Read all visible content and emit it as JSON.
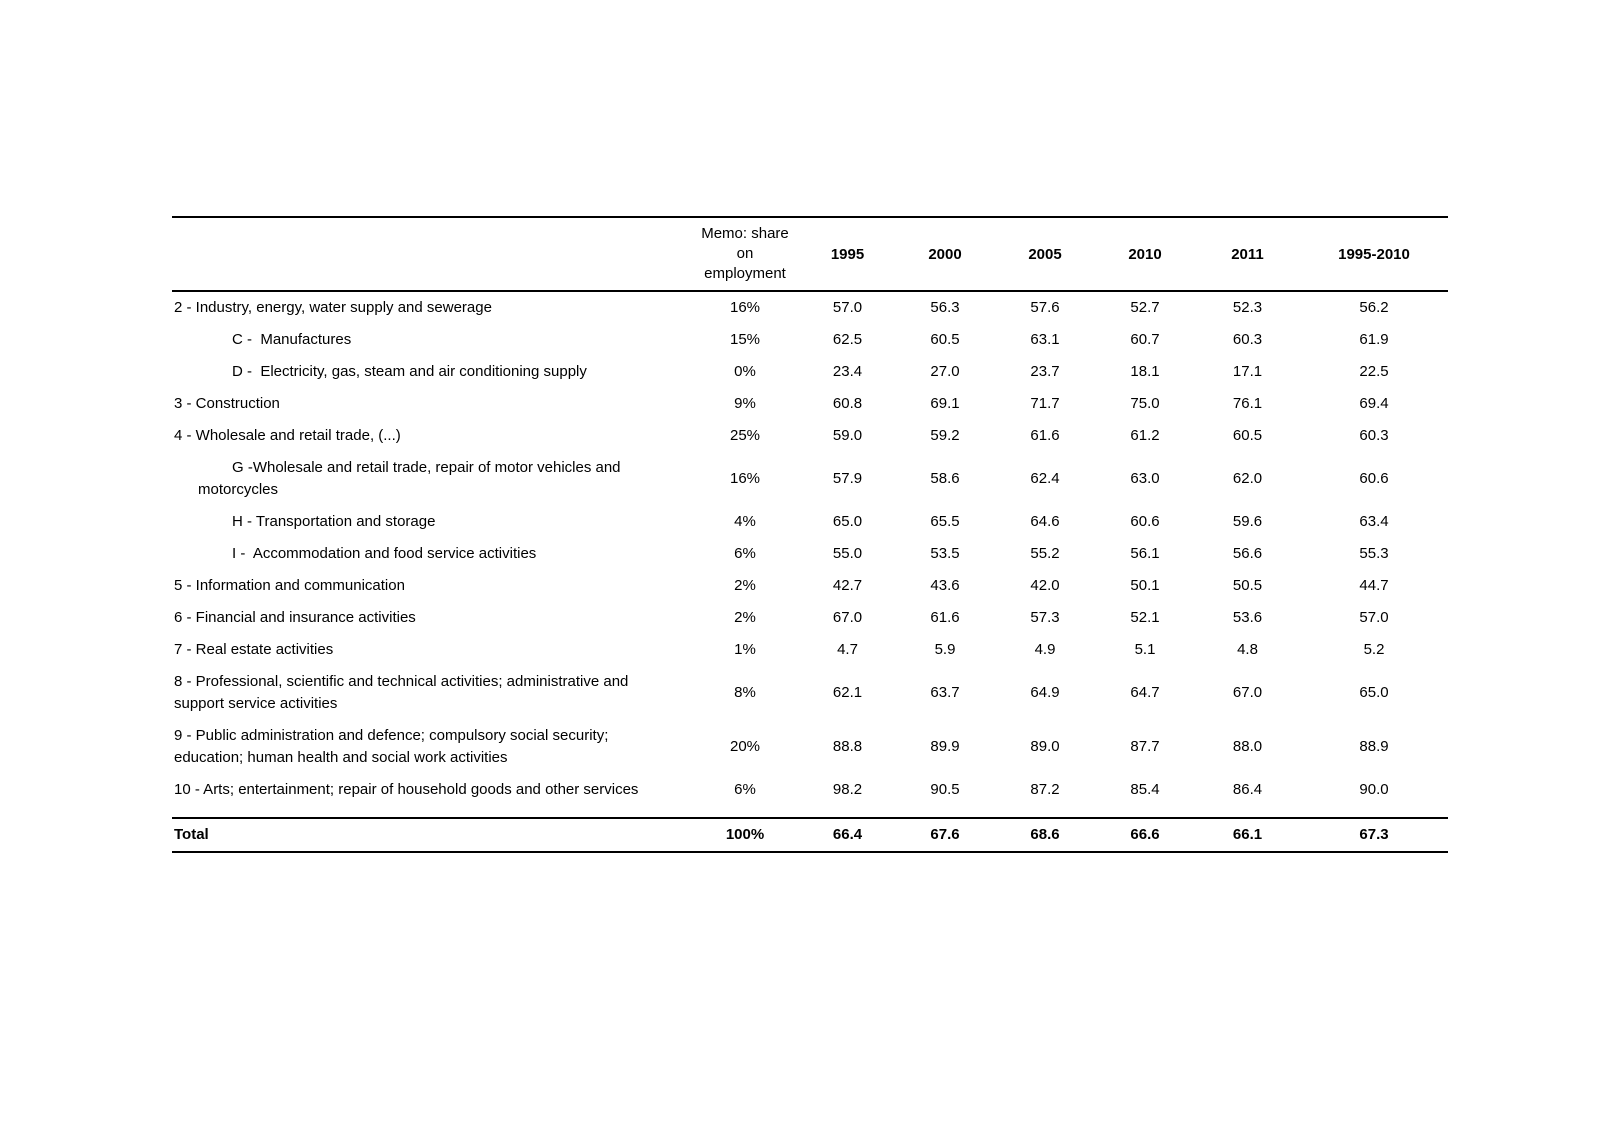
{
  "table": {
    "header": {
      "memo": "Memo: share on employment",
      "years": [
        "1995",
        "2000",
        "2005",
        "2010",
        "2011",
        "1995-2010"
      ]
    },
    "rows": [
      {
        "label": "2 - Industry, energy, water supply and sewerage",
        "level": 0,
        "memo": "16%",
        "values": [
          "57.0",
          "56.3",
          "57.6",
          "52.7",
          "52.3",
          "56.2"
        ]
      },
      {
        "label": "C -  Manufactures",
        "level": 1,
        "memo": "15%",
        "values": [
          "62.5",
          "60.5",
          "63.1",
          "60.7",
          "60.3",
          "61.9"
        ]
      },
      {
        "label": "D -  Electricity, gas, steam and air conditioning supply",
        "level": 1,
        "memo": "0%",
        "values": [
          "23.4",
          "27.0",
          "23.7",
          "18.1",
          "17.1",
          "22.5"
        ]
      },
      {
        "label": "3 - Construction",
        "level": 0,
        "memo": "9%",
        "values": [
          "60.8",
          "69.1",
          "71.7",
          "75.0",
          "76.1",
          "69.4"
        ]
      },
      {
        "label": "4 - Wholesale and retail trade, (...)",
        "level": 0,
        "memo": "25%",
        "values": [
          "59.0",
          "59.2",
          "61.6",
          "61.2",
          "60.5",
          "60.3"
        ]
      },
      {
        "label": "G -Wholesale and retail trade, repair of motor vehicles and motorcycles",
        "level": 1,
        "memo": "16%",
        "values": [
          "57.9",
          "58.6",
          "62.4",
          "63.0",
          "62.0",
          "60.6"
        ]
      },
      {
        "label": "H - Transportation and storage",
        "level": 1,
        "memo": "4%",
        "values": [
          "65.0",
          "65.5",
          "64.6",
          "60.6",
          "59.6",
          "63.4"
        ]
      },
      {
        "label": "I -  Accommodation and food service activities",
        "level": 1,
        "memo": "6%",
        "values": [
          "55.0",
          "53.5",
          "55.2",
          "56.1",
          "56.6",
          "55.3"
        ]
      },
      {
        "label": "5 - Information and communication",
        "level": 0,
        "memo": "2%",
        "values": [
          "42.7",
          "43.6",
          "42.0",
          "50.1",
          "50.5",
          "44.7"
        ]
      },
      {
        "label": "6 - Financial and insurance activities",
        "level": 0,
        "memo": "2%",
        "values": [
          "67.0",
          "61.6",
          "57.3",
          "52.1",
          "53.6",
          "57.0"
        ]
      },
      {
        "label": "7 - Real estate activities",
        "level": 0,
        "memo": "1%",
        "values": [
          "4.7",
          "5.9",
          "4.9",
          "5.1",
          "4.8",
          "5.2"
        ]
      },
      {
        "label": "8 - Professional, scientific and technical activities; administrative and support service activities",
        "level": 0,
        "memo": "8%",
        "values": [
          "62.1",
          "63.7",
          "64.9",
          "64.7",
          "67.0",
          "65.0"
        ]
      },
      {
        "label": "9 - Public administration and defence; compulsory social security; education; human health and social work activities",
        "level": 0,
        "memo": "20%",
        "values": [
          "88.8",
          "89.9",
          "89.0",
          "87.7",
          "88.0",
          "88.9"
        ]
      },
      {
        "label": "10 - Arts; entertainment; repair of household goods and other services",
        "level": 0,
        "memo": "6%",
        "values": [
          "98.2",
          "90.5",
          "87.2",
          "85.4",
          "86.4",
          "90.0"
        ]
      }
    ],
    "total": {
      "label": "Total",
      "memo": "100%",
      "values": [
        "66.4",
        "67.6",
        "68.6",
        "66.6",
        "66.1",
        "67.3"
      ]
    }
  }
}
